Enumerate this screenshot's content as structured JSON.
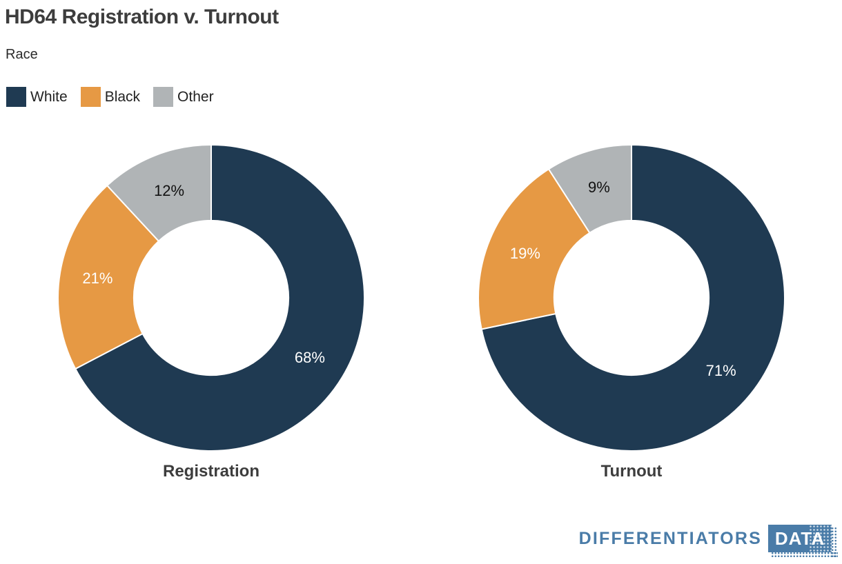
{
  "header": {
    "title": "HD64 Registration v. Turnout",
    "subtitle": "Race"
  },
  "legend": {
    "position": "top-left",
    "items": [
      {
        "label": "White",
        "color": "#1f3a52"
      },
      {
        "label": "Black",
        "color": "#e69944"
      },
      {
        "label": "Other",
        "color": "#b0b4b6"
      }
    ]
  },
  "chart_data": [
    {
      "type": "pie",
      "subtype": "donut",
      "title": "Registration",
      "categories": [
        "White",
        "Black",
        "Other"
      ],
      "values": [
        68,
        21,
        12
      ],
      "labels": [
        "68%",
        "21%",
        "12%"
      ],
      "colors": [
        "#1f3a52",
        "#e69944",
        "#b0b4b6"
      ],
      "label_text_colors": [
        "#ffffff",
        "#ffffff",
        "#111111"
      ],
      "start_angle_deg": 0,
      "direction": "clockwise",
      "inner_radius_ratio": 0.505
    },
    {
      "type": "pie",
      "subtype": "donut",
      "title": "Turnout",
      "categories": [
        "White",
        "Black",
        "Other"
      ],
      "values": [
        71,
        19,
        9
      ],
      "labels": [
        "71%",
        "19%",
        "9%"
      ],
      "colors": [
        "#1f3a52",
        "#e69944",
        "#b0b4b6"
      ],
      "label_text_colors": [
        "#ffffff",
        "#ffffff",
        "#111111"
      ],
      "start_angle_deg": 0,
      "direction": "clockwise",
      "inner_radius_ratio": 0.505
    }
  ],
  "footer": {
    "brand_text": "DIFFERENTIATORS",
    "brand_badge": "DATA",
    "brand_color": "#4a7ca8"
  }
}
